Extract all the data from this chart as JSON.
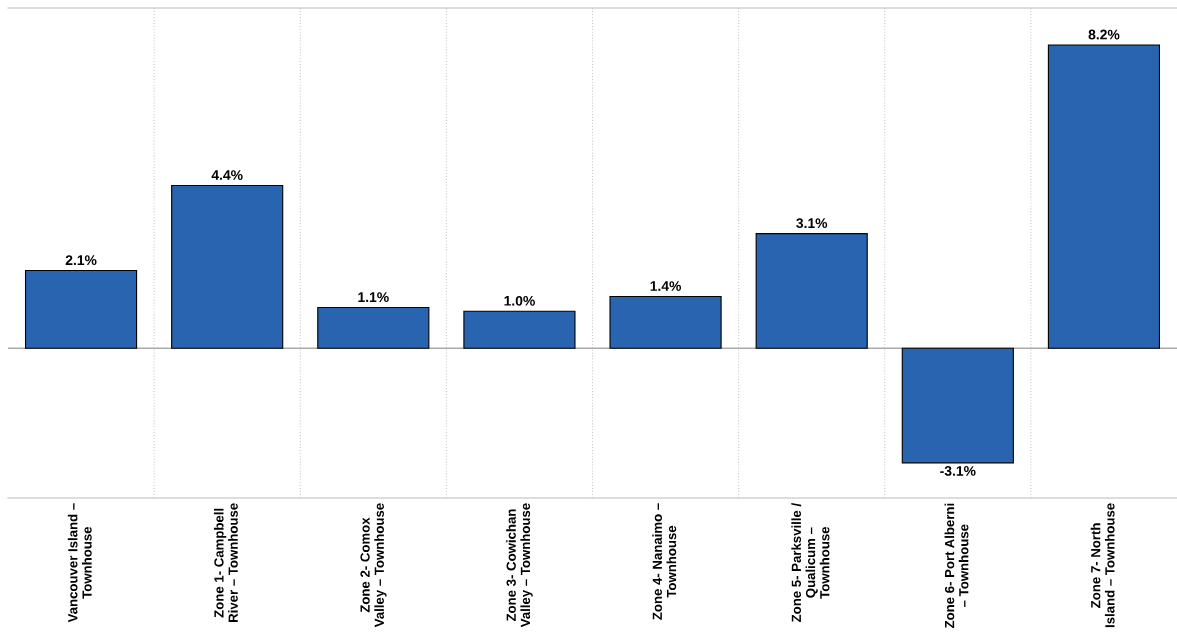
{
  "chart_data": {
    "type": "bar",
    "categories": [
      "Vancouver Island –\nTownhouse",
      "Zone 1- Campbell\nRiver – Townhouse",
      "Zone 2- Comox\nValley – Townhouse",
      "Zone 3- Cowichan\nValley – Townhouse",
      "Zone 4- Nanaimo –\nTownhouse",
      "Zone 5- Parksville /\nQualicum –\nTownhouse",
      "Zone 6- Port Alberni\n– Townhouse",
      "Zone 7- North\nIsland – Townhouse"
    ],
    "values": [
      2.1,
      4.4,
      1.1,
      1.0,
      1.4,
      3.1,
      -3.1,
      8.2
    ],
    "value_labels": [
      "2.1%",
      "4.4%",
      "1.1%",
      "1.0%",
      "1.4%",
      "3.1%",
      "-3.1%",
      "8.2%"
    ],
    "color": "#2864b0",
    "ylim": [
      -4.05,
      9.2
    ],
    "grid": "x"
  }
}
